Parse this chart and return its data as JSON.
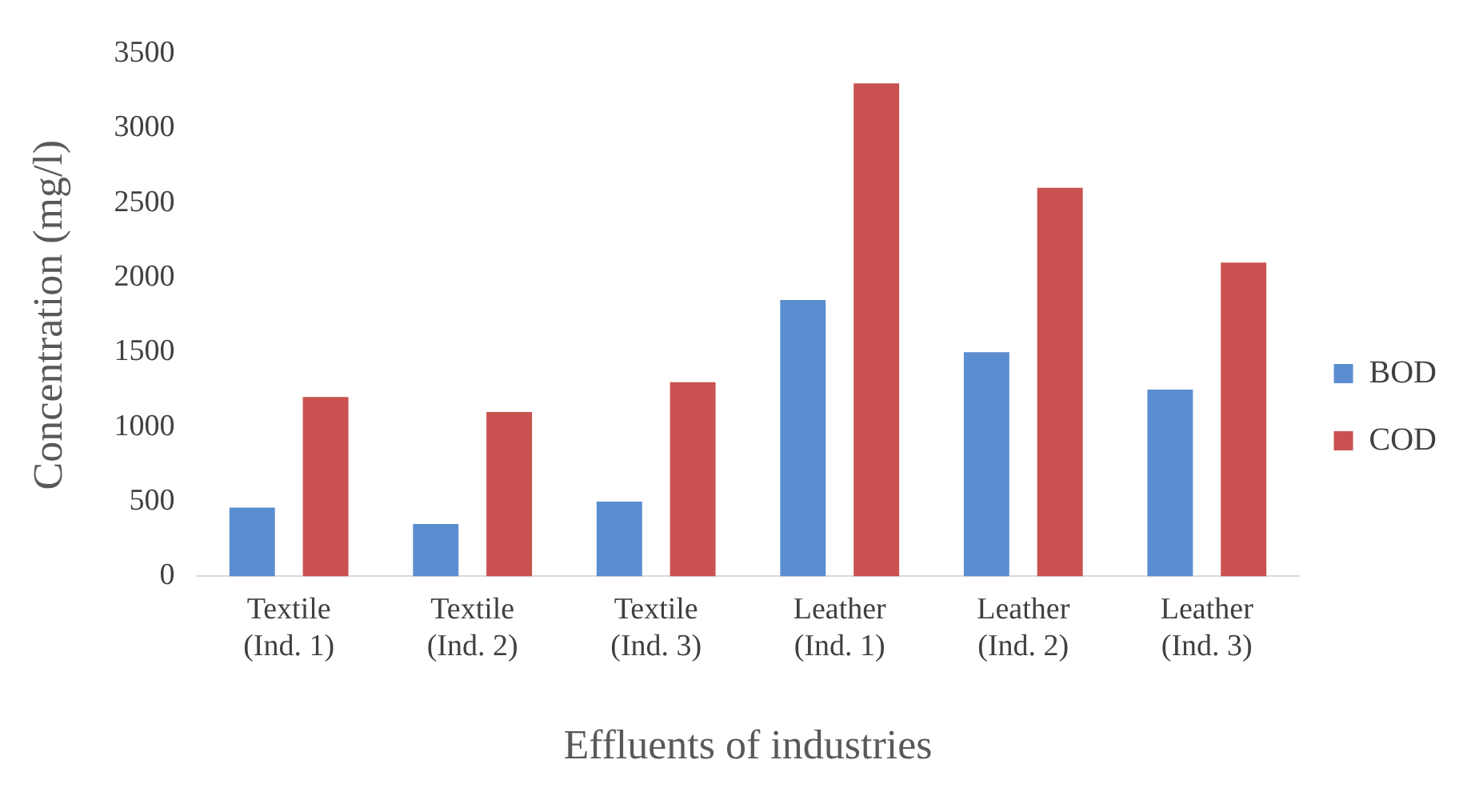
{
  "chart_data": {
    "type": "bar",
    "xlabel": "Effluents of industries",
    "ylabel": "Concentration (mg/l)",
    "categories": [
      "Textile (Ind. 1)",
      "Textile (Ind. 2)",
      "Textile (Ind. 3)",
      "Leather (Ind. 1)",
      "Leather (Ind. 2)",
      "Leather (Ind. 3)"
    ],
    "series": [
      {
        "name": "BOD",
        "color": "#5b8ed0",
        "values": [
          460,
          350,
          500,
          1850,
          1500,
          1250
        ]
      },
      {
        "name": "COD",
        "color": "#c9514f",
        "values": [
          1200,
          1100,
          1300,
          3300,
          2600,
          2100
        ]
      }
    ],
    "ylim": [
      0,
      3500
    ],
    "yticks": [
      0,
      500,
      1000,
      1500,
      2000,
      2500,
      3000,
      3500
    ],
    "grid": false,
    "legend": "right"
  }
}
